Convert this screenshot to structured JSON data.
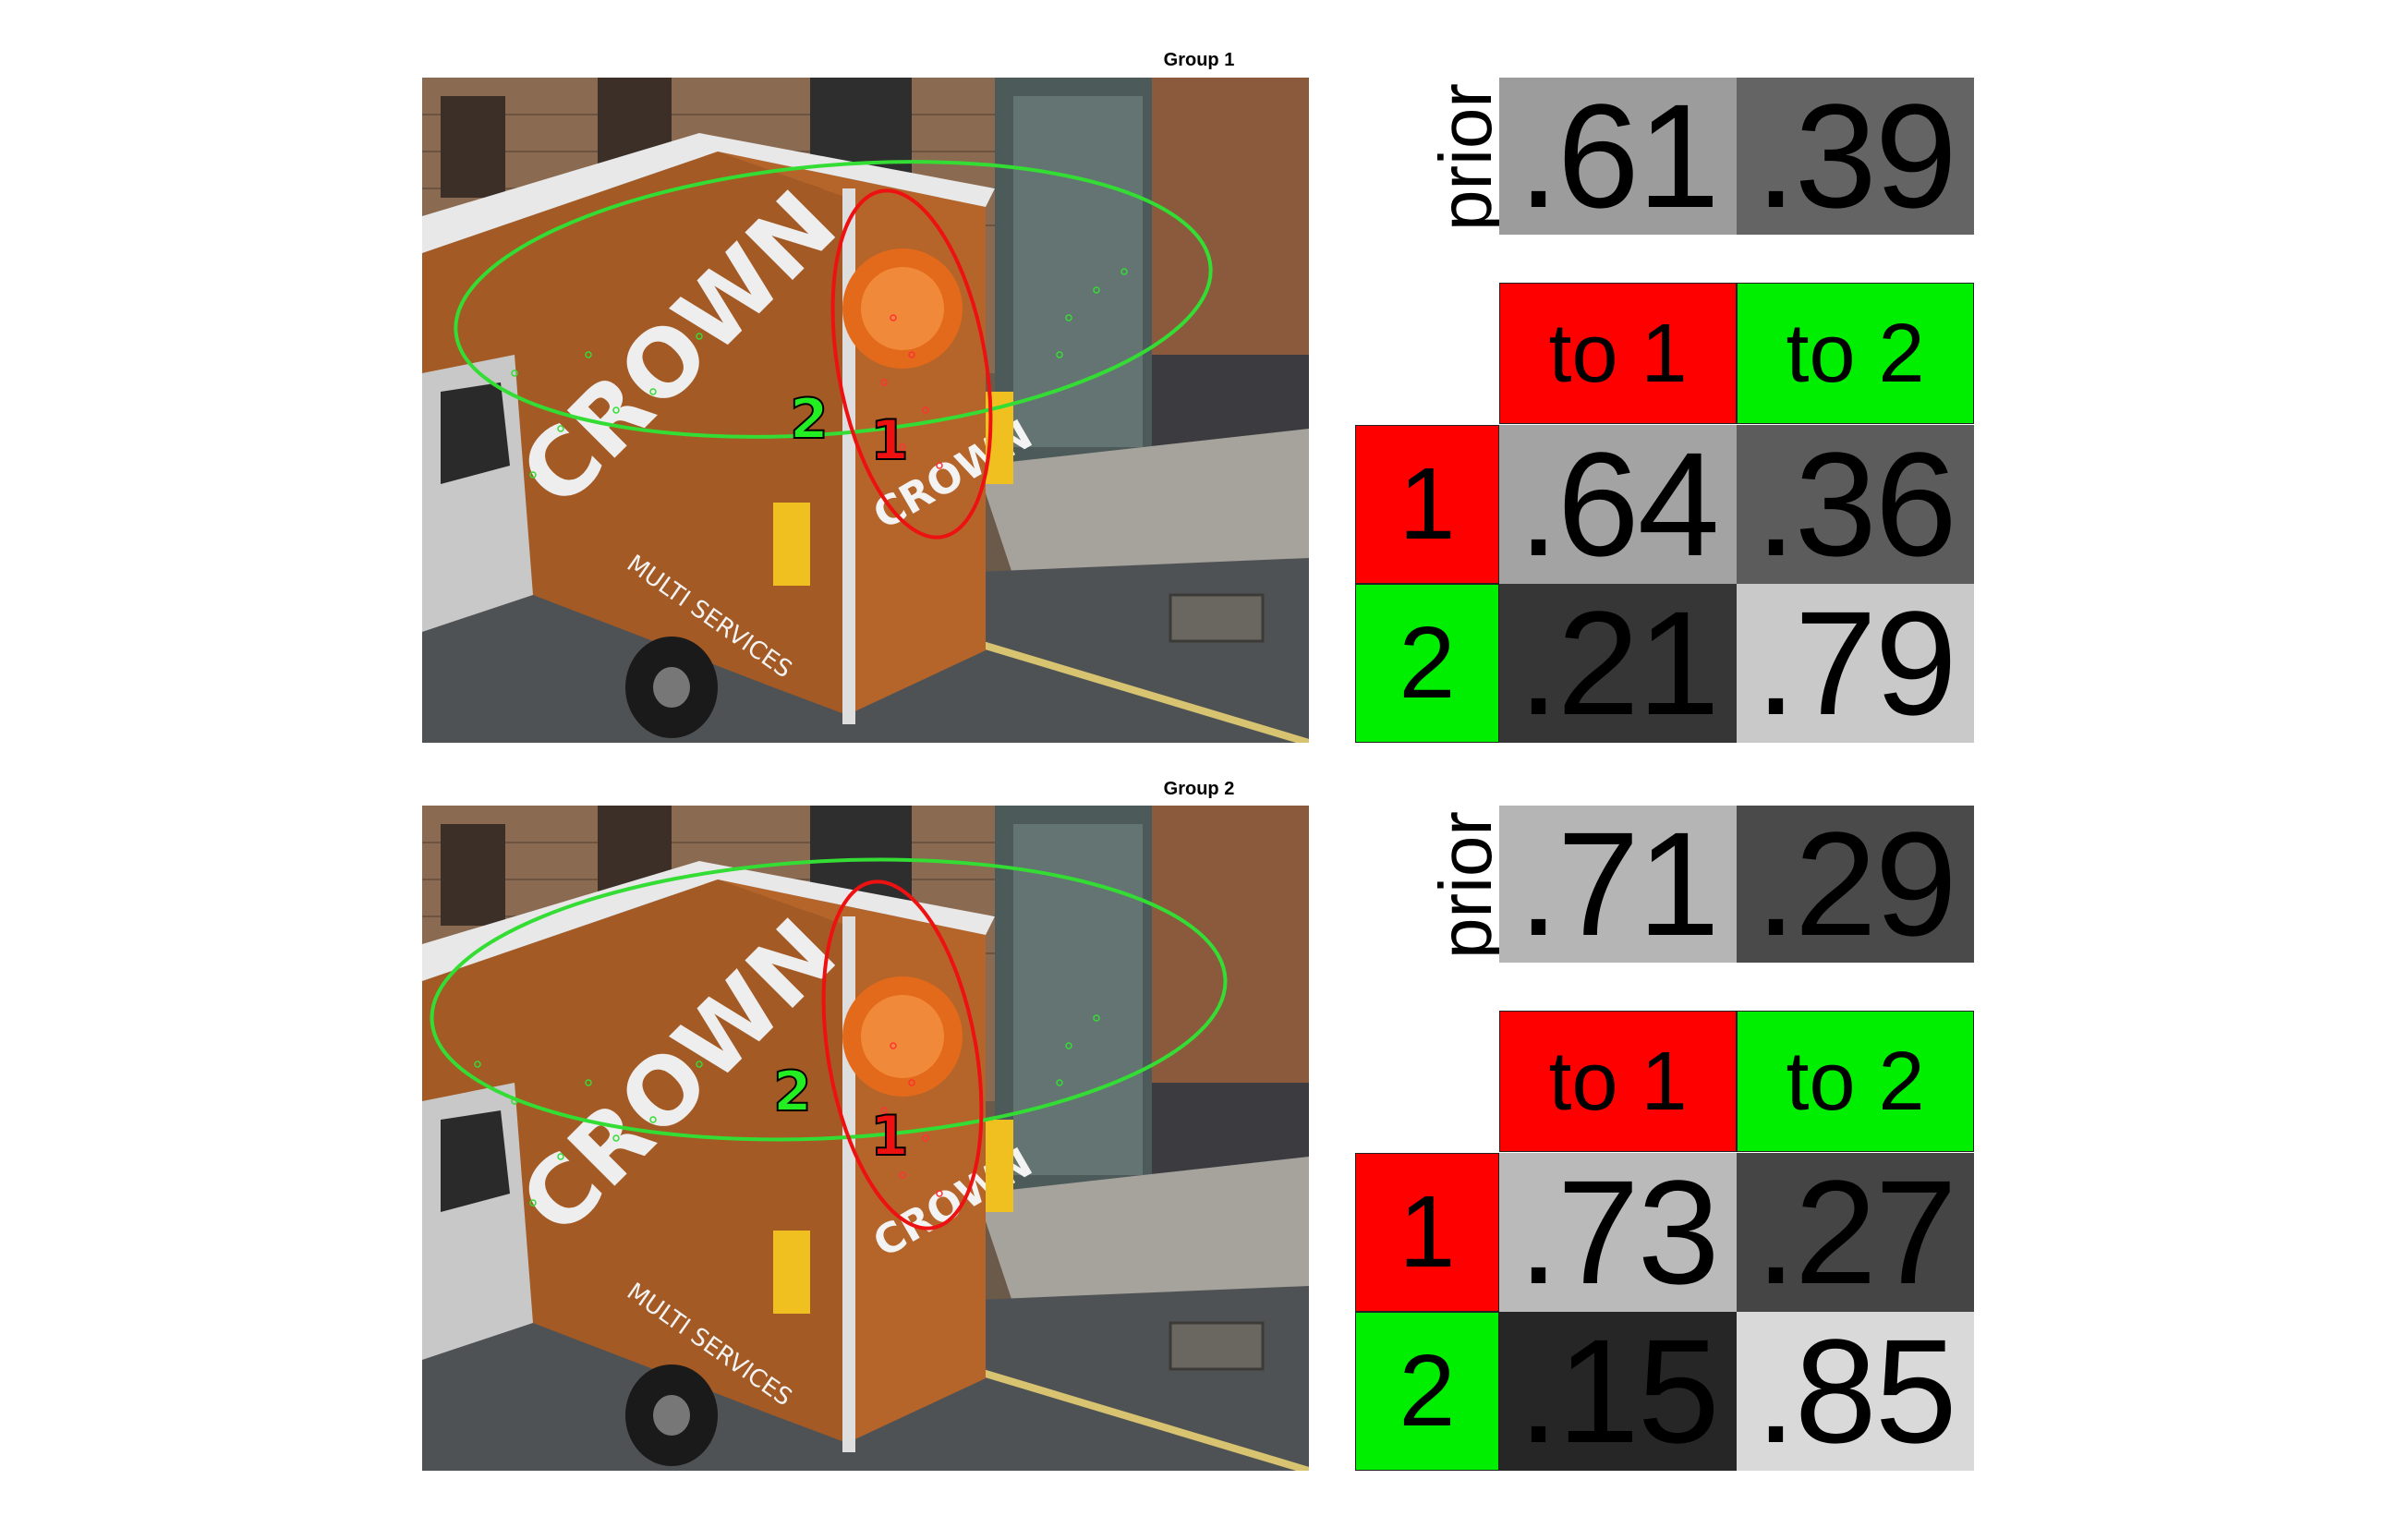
{
  "groups": [
    {
      "title": "Group 1",
      "ellipse_labels": [
        "1",
        "2"
      ],
      "prior_label": "prior",
      "prior": [
        ".61",
        ".39"
      ],
      "prior_shades": [
        "#9c9c9c",
        "#646464"
      ],
      "col_headers": [
        "to 1",
        "to 2"
      ],
      "row_headers": [
        "1",
        "2"
      ],
      "transition": [
        [
          ".64",
          ".36"
        ],
        [
          ".21",
          ".79"
        ]
      ],
      "transition_shades": [
        [
          "#a3a3a3",
          "#5c5c5c"
        ],
        [
          "#363636",
          "#c9c9c9"
        ]
      ]
    },
    {
      "title": "Group 2",
      "ellipse_labels": [
        "1",
        "2"
      ],
      "prior_label": "prior",
      "prior": [
        ".71",
        ".29"
      ],
      "prior_shades": [
        "#b5b5b5",
        "#4a4a4a"
      ],
      "col_headers": [
        "to 1",
        "to 2"
      ],
      "row_headers": [
        "1",
        "2"
      ],
      "transition": [
        [
          ".73",
          ".27"
        ],
        [
          ".15",
          ".85"
        ]
      ],
      "transition_shades": [
        [
          "#bababa",
          "#454545"
        ],
        [
          "#262626",
          "#d9d9d9"
        ]
      ]
    }
  ],
  "colors": {
    "state1": "#ff0000",
    "state2": "#00ee00",
    "ellipse1": "#ee1111",
    "ellipse2": "#33dd33"
  },
  "scene": {
    "van_text": [
      "CROWN",
      "MULTI SERVICES"
    ]
  }
}
